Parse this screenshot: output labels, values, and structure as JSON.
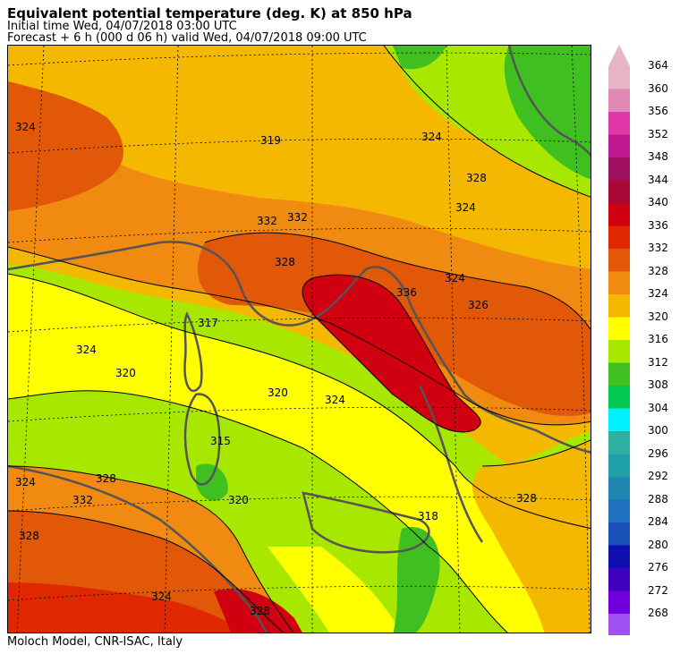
{
  "header": {
    "title": "Equivalent potential temperature (deg. K) at 850 hPa",
    "initial_time": "Initial time  Wed, 04/07/2018  03:00 UTC",
    "forecast": "Forecast  +   6 h  (000 d 06 h)  valid Wed, 04/07/2018 09:00 UTC"
  },
  "footer": {
    "credit": "Moloch Model, CNR-ISAC, Italy"
  },
  "colorbar": {
    "levels": [
      {
        "label": "364",
        "color": "#e8b4c8"
      },
      {
        "label": "360",
        "color": "#e08ab4"
      },
      {
        "label": "356",
        "color": "#e038a8"
      },
      {
        "label": "352",
        "color": "#c01890"
      },
      {
        "label": "348",
        "color": "#a01060"
      },
      {
        "label": "344",
        "color": "#a80838"
      },
      {
        "label": "340",
        "color": "#d00010"
      },
      {
        "label": "336",
        "color": "#e02800"
      },
      {
        "label": "332",
        "color": "#e05808"
      },
      {
        "label": "328",
        "color": "#f08a10"
      },
      {
        "label": "324",
        "color": "#f5b800"
      },
      {
        "label": "320",
        "color": "#ffff00"
      },
      {
        "label": "316",
        "color": "#a8e800"
      },
      {
        "label": "312",
        "color": "#40c020"
      },
      {
        "label": "308",
        "color": "#00c850"
      },
      {
        "label": "304",
        "color": "#00f0ff"
      },
      {
        "label": "300",
        "color": "#30b0a0"
      },
      {
        "label": "296",
        "color": "#20a0a8"
      },
      {
        "label": "292",
        "color": "#2088b0"
      },
      {
        "label": "288",
        "color": "#2070c0"
      },
      {
        "label": "284",
        "color": "#1850b8"
      },
      {
        "label": "280",
        "color": "#1010b0"
      },
      {
        "label": "276",
        "color": "#4000c0"
      },
      {
        "label": "272",
        "color": "#7000e0"
      },
      {
        "label": "268",
        "color": "#a050f0"
      }
    ],
    "top_arrow_color": "#e8b4c8",
    "bottom_arrow_color": "#c080f0"
  },
  "map": {
    "contour_labels": [
      {
        "text": "324"
      },
      {
        "text": "319"
      },
      {
        "text": "324"
      },
      {
        "text": "328"
      },
      {
        "text": "324"
      },
      {
        "text": "332"
      },
      {
        "text": "332"
      },
      {
        "text": "328"
      },
      {
        "text": "336"
      },
      {
        "text": "324"
      },
      {
        "text": "326"
      },
      {
        "text": "317"
      },
      {
        "text": "324"
      },
      {
        "text": "320"
      },
      {
        "text": "320"
      },
      {
        "text": "324"
      },
      {
        "text": "315"
      },
      {
        "text": "324"
      },
      {
        "text": "328"
      },
      {
        "text": "332"
      },
      {
        "text": "328"
      },
      {
        "text": "320"
      },
      {
        "text": "318"
      },
      {
        "text": "328"
      },
      {
        "text": "324"
      },
      {
        "text": "328"
      }
    ]
  }
}
